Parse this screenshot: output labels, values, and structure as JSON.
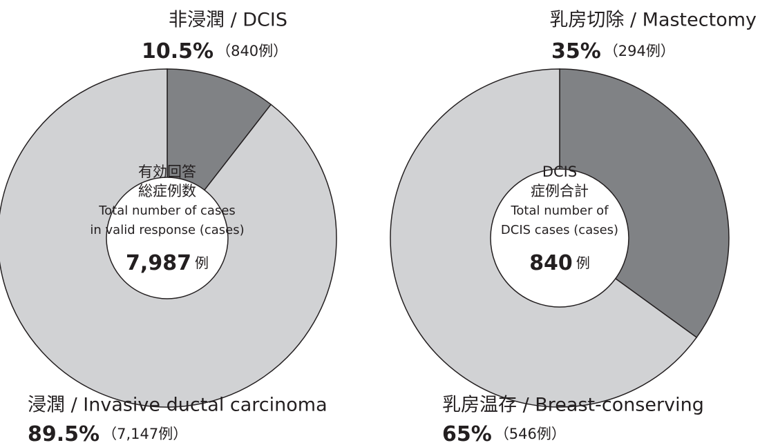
{
  "chart_data": [
    {
      "type": "donut",
      "categories": [
        "非浸潤 / DCIS",
        "浸潤 / Invasive ductal carcinoma"
      ],
      "values": [
        10.5,
        89.5
      ],
      "value_labels": [
        "10.5%",
        "89.5%"
      ],
      "count_labels": [
        "（840例）",
        "（7,147例）"
      ],
      "colors": [
        "#808285",
        "#d1d2d4"
      ],
      "center_lines": [
        "有効回答",
        "総症例数",
        "Total number of cases",
        "in valid response (cases)"
      ],
      "total_label": "7,987",
      "total_unit": "例"
    },
    {
      "type": "donut",
      "categories": [
        "乳房切除 / Mastectomy",
        "乳房温存 / Breast-conserving"
      ],
      "values": [
        35,
        65
      ],
      "value_labels": [
        "35%",
        "65%"
      ],
      "count_labels": [
        "（294例）",
        "（546例）"
      ],
      "colors": [
        "#808285",
        "#d1d2d4"
      ],
      "center_lines": [
        "DCIS",
        "症例合計",
        "Total number of",
        "DCIS cases (cases)"
      ],
      "total_label": "840",
      "total_unit": "例"
    }
  ]
}
